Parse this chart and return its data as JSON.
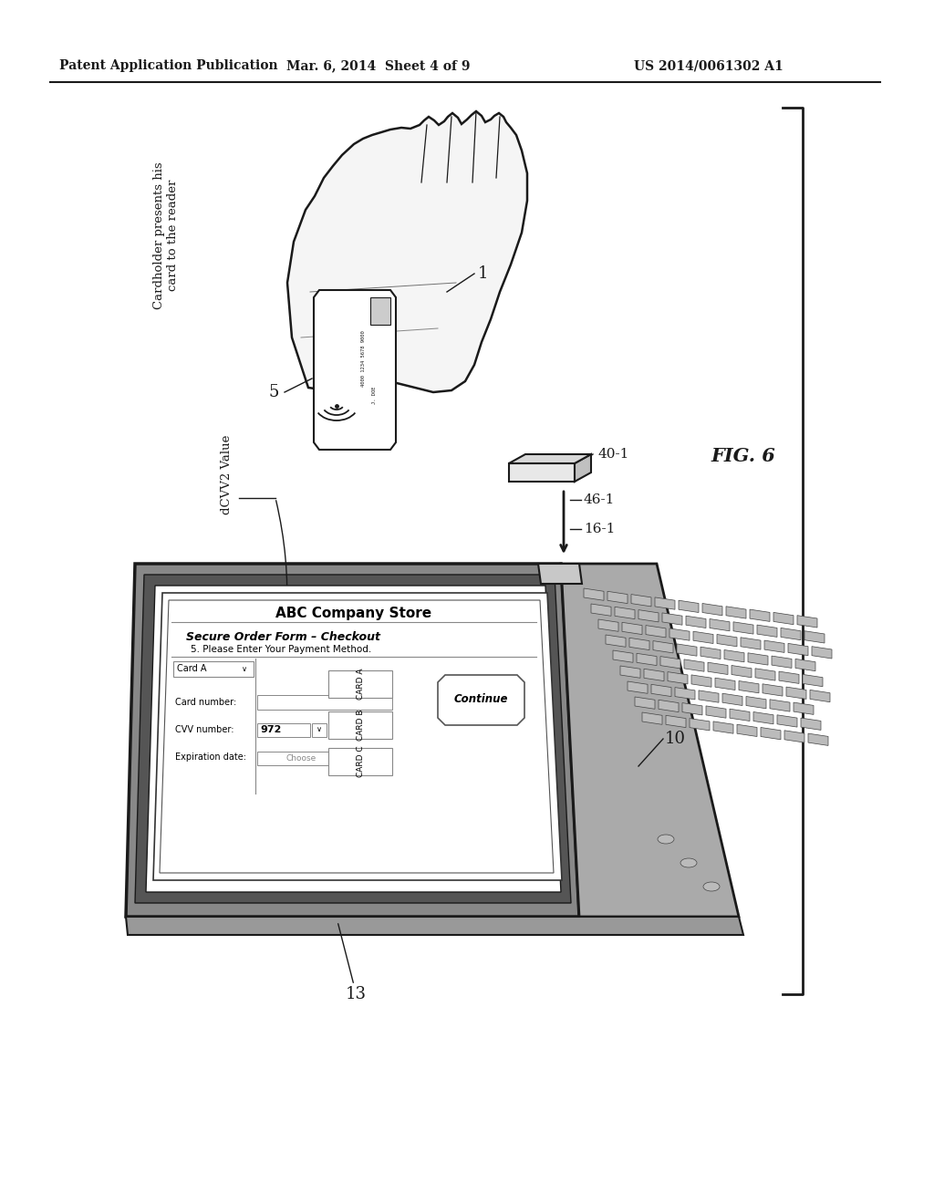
{
  "header_left": "Patent Application Publication",
  "header_mid": "Mar. 6, 2014  Sheet 4 of 9",
  "header_right": "US 2014/0061302 A1",
  "fig_label": "FIG. 6",
  "bg": "#ffffff",
  "lc": "#1a1a1a",
  "hand_text": "Cardholder presents his\ncard to the reader",
  "card_number": "4000 1234 5678 9000",
  "card_name": "J. DOE",
  "label_1": "1",
  "label_5": "5",
  "label_dcvv2": "dCVV2 Value",
  "label_40_1": "40-1",
  "label_46_1": "46-1",
  "label_16_1": "16-1",
  "label_10": "10",
  "label_13": "13",
  "fig6": "FIG. 6",
  "form_title": "ABC Company Store",
  "form_subtitle": "Secure Order Form – Checkout",
  "form_step": "5. Please Enter Your Payment Method.",
  "card_dropdown": "Card A",
  "tab1": "CARD A",
  "tab2": "CARD B",
  "tab3": "CARD C",
  "field1": "Card number:",
  "field2": "CVV number:",
  "field3": "Expiration date:",
  "cvv_val": "972",
  "btn": "Continue",
  "choose_text": "Choose"
}
